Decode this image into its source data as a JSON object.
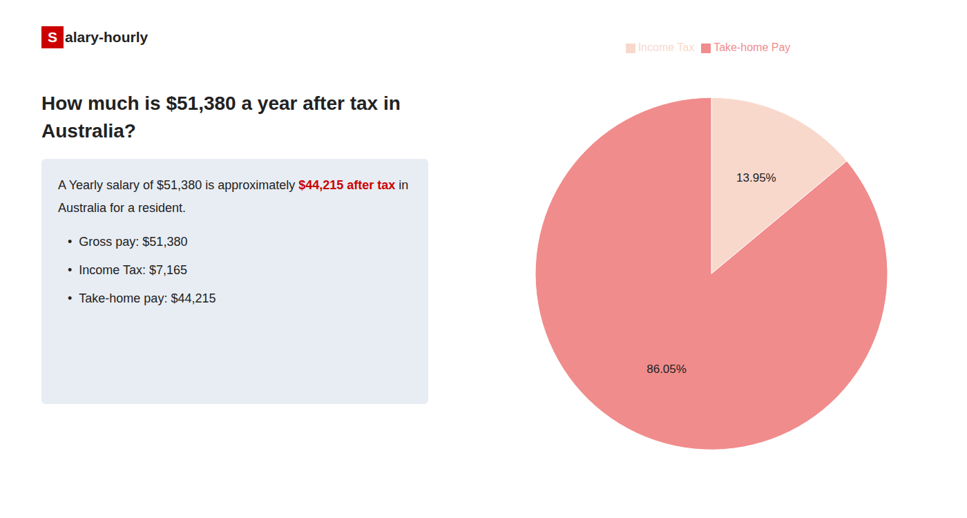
{
  "chart_data": {
    "type": "pie",
    "logo": [
      {
        "text": "S",
        "color": "#cc0000"
      },
      {
        "text": "alary-hourly"
      }
    ],
    "title": [
      "How much is $51,380 a year after tax in",
      "Australia?"
    ],
    "annotations": [
      [
        {
          "text": "A Yearly salary of $51,380 is approximately "
        },
        {
          "text": "$44,215 after tax",
          "color": "#cc0000"
        },
        {
          "text": " in"
        }
      ],
      [
        {
          "text": "Australia for a resident."
        }
      ],
      [
        {
          "text": "•"
        },
        {
          "text": "Gross pay: $51,380"
        }
      ],
      [
        {
          "text": "•"
        },
        {
          "text": "Income Tax: $7,165"
        }
      ],
      [
        {
          "text": "•"
        },
        {
          "text": "Take-home pay: $44,215"
        }
      ]
    ],
    "categories": [
      "Income Tax",
      "Take-home Pay"
    ],
    "values": [
      13.95,
      86.05
    ],
    "value_labels": [
      "13.95%",
      "86.05%"
    ],
    "colors": [
      "#f9d8cc",
      "#f08c8c"
    ],
    "data_labels": true,
    "legend": "top"
  }
}
